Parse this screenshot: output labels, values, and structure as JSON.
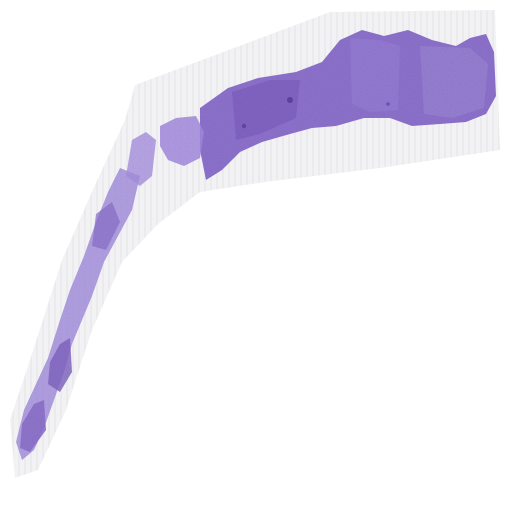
{
  "image": {
    "subject": "tissue-section",
    "colors": {
      "background": "#ffffff",
      "slide_band": "#f2f2f4",
      "slide_band_edge": "#e7e7ea",
      "tissue_dense": "#8f73cf",
      "tissue_mid": "#a58be0",
      "tissue_light": "#c7b8ee",
      "tissue_dark": "#6b4fb0"
    }
  }
}
